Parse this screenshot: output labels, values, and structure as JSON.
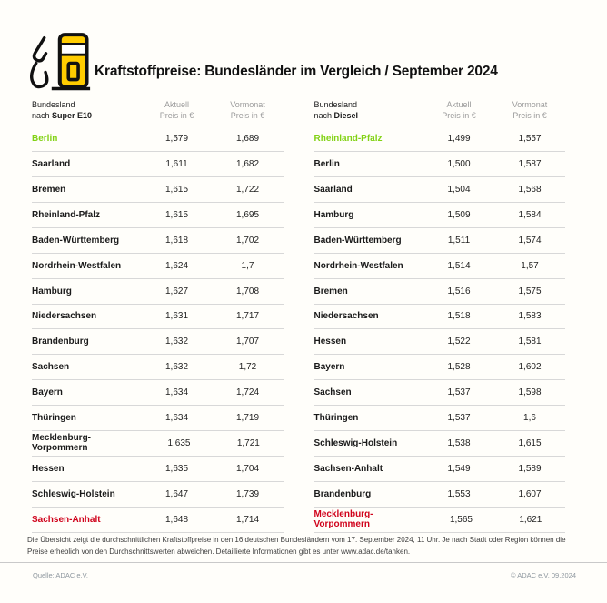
{
  "header": {
    "title": "Kraftstoffpreise: Bundesländer im Vergleich / September 2024"
  },
  "colors": {
    "accent_yellow": "#FFCC00",
    "highlight_green": "#82D214",
    "highlight_red": "#D0021B",
    "icon_outline": "#111111"
  },
  "chart_data": [
    {
      "type": "table",
      "fuel": "Super E10",
      "header": {
        "col1_line1": "Bundesland",
        "col1_prefix": "nach ",
        "col1_fuel": "Super E10",
        "col2_line1": "Aktuell",
        "col2_line2": "Preis in €",
        "col3_line1": "Vormonat",
        "col3_line2": "Preis in €"
      },
      "rows": [
        {
          "state": "Berlin",
          "aktuell": "1,579",
          "vormonat": "1,689",
          "highlight": "green"
        },
        {
          "state": "Saarland",
          "aktuell": "1,611",
          "vormonat": "1,682"
        },
        {
          "state": "Bremen",
          "aktuell": "1,615",
          "vormonat": "1,722"
        },
        {
          "state": "Rheinland-Pfalz",
          "aktuell": "1,615",
          "vormonat": "1,695"
        },
        {
          "state": "Baden-Württemberg",
          "aktuell": "1,618",
          "vormonat": "1,702"
        },
        {
          "state": "Nordrhein-Westfalen",
          "aktuell": "1,624",
          "vormonat": "1,7"
        },
        {
          "state": "Hamburg",
          "aktuell": "1,627",
          "vormonat": "1,708"
        },
        {
          "state": "Niedersachsen",
          "aktuell": "1,631",
          "vormonat": "1,717"
        },
        {
          "state": "Brandenburg",
          "aktuell": "1,632",
          "vormonat": "1,707"
        },
        {
          "state": "Sachsen",
          "aktuell": "1,632",
          "vormonat": "1,72"
        },
        {
          "state": "Bayern",
          "aktuell": "1,634",
          "vormonat": "1,724"
        },
        {
          "state": "Thüringen",
          "aktuell": "1,634",
          "vormonat": "1,719"
        },
        {
          "state": "Mecklenburg-Vorpommern",
          "aktuell": "1,635",
          "vormonat": "1,721"
        },
        {
          "state": "Hessen",
          "aktuell": "1,635",
          "vormonat": "1,704"
        },
        {
          "state": "Schleswig-Holstein",
          "aktuell": "1,647",
          "vormonat": "1,739"
        },
        {
          "state": "Sachsen-Anhalt",
          "aktuell": "1,648",
          "vormonat": "1,714",
          "highlight": "red"
        }
      ]
    },
    {
      "type": "table",
      "fuel": "Diesel",
      "header": {
        "col1_line1": "Bundesland",
        "col1_prefix": "nach ",
        "col1_fuel": "Diesel",
        "col2_line1": "Aktuell",
        "col2_line2": "Preis in €",
        "col3_line1": "Vormonat",
        "col3_line2": "Preis in €"
      },
      "rows": [
        {
          "state": "Rheinland-Pfalz",
          "aktuell": "1,499",
          "vormonat": "1,557",
          "highlight": "green"
        },
        {
          "state": "Berlin",
          "aktuell": "1,500",
          "vormonat": "1,587"
        },
        {
          "state": "Saarland",
          "aktuell": "1,504",
          "vormonat": "1,568"
        },
        {
          "state": "Hamburg",
          "aktuell": "1,509",
          "vormonat": "1,584"
        },
        {
          "state": "Baden-Württemberg",
          "aktuell": "1,511",
          "vormonat": "1,574"
        },
        {
          "state": "Nordrhein-Westfalen",
          "aktuell": "1,514",
          "vormonat": "1,57"
        },
        {
          "state": "Bremen",
          "aktuell": "1,516",
          "vormonat": "1,575"
        },
        {
          "state": "Niedersachsen",
          "aktuell": "1,518",
          "vormonat": "1,583"
        },
        {
          "state": "Hessen",
          "aktuell": "1,522",
          "vormonat": "1,581"
        },
        {
          "state": "Bayern",
          "aktuell": "1,528",
          "vormonat": "1,602"
        },
        {
          "state": "Sachsen",
          "aktuell": "1,537",
          "vormonat": "1,598"
        },
        {
          "state": "Thüringen",
          "aktuell": "1,537",
          "vormonat": "1,6"
        },
        {
          "state": "Schleswig-Holstein",
          "aktuell": "1,538",
          "vormonat": "1,615"
        },
        {
          "state": "Sachsen-Anhalt",
          "aktuell": "1,549",
          "vormonat": "1,589"
        },
        {
          "state": "Brandenburg",
          "aktuell": "1,553",
          "vormonat": "1,607"
        },
        {
          "state": "Mecklenburg-Vorpommern",
          "aktuell": "1,565",
          "vormonat": "1,621",
          "highlight": "red"
        }
      ]
    }
  ],
  "footnote": {
    "line1": "Die Übersicht zeigt die durchschnittlichen Kraftstoffpreise in den 16 deutschen Bundesländern vom 17. September 2024, 11 Uhr. Je nach Stadt oder Region können die",
    "line2": "Preise erheblich von den Durchschnittswerten abweichen. Detaillierte Informationen gibt es unter www.adac.de/tanken."
  },
  "footer": {
    "source": "Quelle: ADAC e.V.",
    "copyright": "© ADAC e.V. 09.2024"
  }
}
